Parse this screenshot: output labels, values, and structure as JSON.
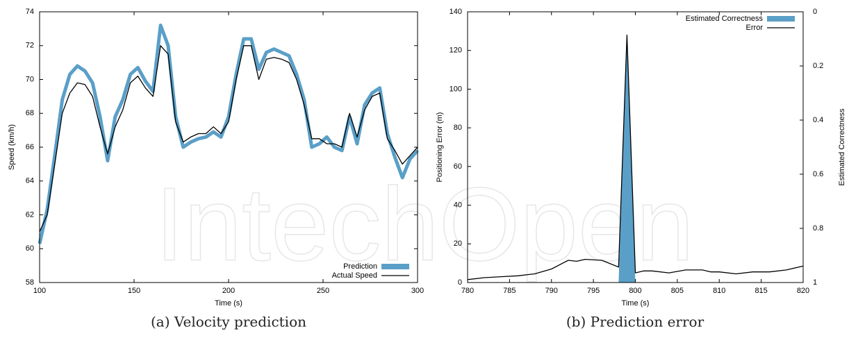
{
  "watermark": "IntechOpen",
  "chart_data": [
    {
      "type": "line",
      "caption": "(a)  Velocity prediction",
      "xlabel": "Time (s)",
      "ylabel": "Speed (km/h)",
      "xlim": [
        100,
        300
      ],
      "xticks": [
        100,
        150,
        200,
        250,
        300
      ],
      "ylim": [
        58,
        74
      ],
      "yticks": [
        58,
        60,
        62,
        64,
        66,
        68,
        70,
        72,
        74
      ],
      "legend": "lower right",
      "x": [
        100,
        104,
        108,
        112,
        116,
        120,
        124,
        128,
        132,
        136,
        140,
        144,
        148,
        152,
        156,
        160,
        164,
        168,
        172,
        176,
        180,
        184,
        188,
        192,
        196,
        200,
        204,
        208,
        212,
        216,
        220,
        224,
        228,
        232,
        236,
        240,
        244,
        248,
        252,
        256,
        260,
        264,
        268,
        272,
        276,
        280,
        284,
        288,
        292,
        296,
        300
      ],
      "series": [
        {
          "name": "Prediction",
          "kind": "band",
          "color": "#5a9fc8",
          "values": [
            60.3,
            62.3,
            65.5,
            68.8,
            70.3,
            70.8,
            70.5,
            69.8,
            67.8,
            65.2,
            67.8,
            68.8,
            70.3,
            70.7,
            69.9,
            69.3,
            73.2,
            72,
            67.8,
            66,
            66.3,
            66.5,
            66.6,
            66.9,
            66.6,
            67.8,
            70.3,
            72.4,
            72.4,
            70.6,
            71.6,
            71.8,
            71.6,
            71.4,
            70.3,
            68.8,
            66,
            66.2,
            66.6,
            66,
            65.8,
            67.8,
            66.2,
            68.5,
            69.2,
            69.5,
            66.8,
            65.4,
            64.2,
            65.3,
            65.8
          ]
        },
        {
          "name": "Actual Speed",
          "kind": "line",
          "color": "#000000",
          "values": [
            61,
            62,
            65,
            68,
            69.2,
            69.8,
            69.7,
            69,
            67.2,
            65.6,
            67.2,
            68.2,
            69.8,
            70.2,
            69.5,
            69,
            72,
            71.5,
            67.5,
            66.3,
            66.6,
            66.8,
            66.8,
            67.2,
            66.8,
            67.5,
            70,
            72,
            72,
            70,
            71.2,
            71.3,
            71.2,
            71,
            70,
            68.5,
            66.5,
            66.5,
            66.2,
            66.2,
            66,
            68,
            66.6,
            68.2,
            69,
            69.2,
            66.5,
            65.8,
            65,
            65.5,
            66
          ]
        }
      ]
    },
    {
      "type": "line",
      "caption": "(b)  Prediction error",
      "xlabel": "Time (s)",
      "ylabel": "Positioning Error (m)",
      "y2label": "Estimated Correctness",
      "xlim": [
        780,
        820
      ],
      "xticks": [
        780,
        785,
        790,
        795,
        800,
        805,
        810,
        815,
        820
      ],
      "ylim": [
        0,
        140
      ],
      "yticks": [
        0,
        20,
        40,
        60,
        80,
        100,
        120,
        140
      ],
      "y2lim": [
        1,
        0
      ],
      "y2ticks": [
        0,
        0.2,
        0.4,
        0.6,
        0.8,
        1
      ],
      "legend": "upper right",
      "series": [
        {
          "name": "Estimated Correctness",
          "kind": "area",
          "axis": "y2",
          "color": "#5a9fc8",
          "x": [
            798,
            799,
            800
          ],
          "values": [
            1,
            0.08,
            1
          ]
        },
        {
          "name": "Error",
          "kind": "line",
          "color": "#000000",
          "x": [
            780,
            782,
            784,
            786,
            788,
            790,
            792,
            793,
            794,
            796,
            798,
            799,
            800,
            801,
            802,
            804,
            806,
            808,
            809,
            810,
            812,
            814,
            816,
            818,
            820
          ],
          "values": [
            1.5,
            2.5,
            3,
            3.5,
            4.5,
            7,
            11.5,
            11,
            12,
            11.5,
            8,
            128,
            5,
            6,
            6,
            5,
            6.5,
            6.5,
            5.5,
            5.5,
            4.5,
            5.5,
            5.5,
            6.5,
            8.5
          ]
        }
      ]
    }
  ]
}
